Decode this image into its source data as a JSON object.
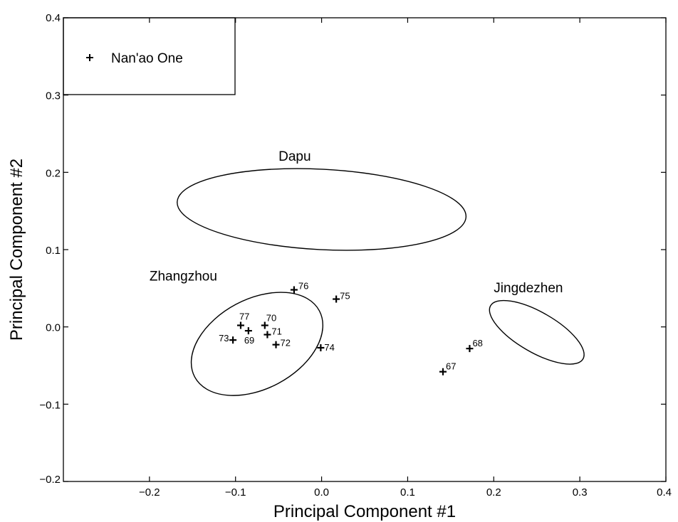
{
  "chart_data": {
    "type": "scatter",
    "xlabel": "Principal Component #1",
    "ylabel": "Principal Component #2",
    "xlim": [
      -0.3,
      0.4
    ],
    "ylim": [
      -0.2,
      0.4
    ],
    "x_ticks": [
      "-0.2",
      "-0.1",
      "0.0",
      "0.1",
      "0.2",
      "0.3",
      "0.4"
    ],
    "y_ticks": [
      "-0.2",
      "-0.1",
      "0.0",
      "0.1",
      "0.2",
      "0.3",
      "0.4"
    ],
    "grid": false,
    "legend": {
      "position": "top-left",
      "entries": [
        "Nan'ao One"
      ]
    },
    "series": [
      {
        "name": "Nan'ao One",
        "marker": "+",
        "points": [
          {
            "label": "67",
            "x": 0.141,
            "y": -0.058
          },
          {
            "label": "68",
            "x": 0.172,
            "y": -0.028
          },
          {
            "label": "69",
            "x": -0.085,
            "y": -0.005
          },
          {
            "label": "70",
            "x": -0.066,
            "y": 0.002
          },
          {
            "label": "71",
            "x": -0.063,
            "y": -0.01
          },
          {
            "label": "72",
            "x": -0.053,
            "y": -0.023
          },
          {
            "label": "73",
            "x": -0.103,
            "y": -0.017
          },
          {
            "label": "74",
            "x": -0.001,
            "y": -0.027
          },
          {
            "label": "75",
            "x": 0.017,
            "y": 0.036
          },
          {
            "label": "76",
            "x": -0.032,
            "y": 0.048
          },
          {
            "label": "77",
            "x": -0.094,
            "y": 0.002
          }
        ]
      }
    ],
    "groups": [
      {
        "name": "Dapu",
        "cx": 0.0,
        "cy": 0.152,
        "rx": 0.168,
        "ry": 0.052,
        "angle_deg": 3,
        "label_x": -0.05,
        "label_y": 0.215
      },
      {
        "name": "Zhangzhou",
        "cx": -0.075,
        "cy": -0.022,
        "rx": 0.082,
        "ry": 0.058,
        "angle_deg": -28,
        "label_x": -0.2,
        "label_y": 0.06
      },
      {
        "name": "Jingdezhen",
        "cx": 0.25,
        "cy": -0.007,
        "rx": 0.062,
        "ry": 0.026,
        "angle_deg": 30,
        "label_x": 0.2,
        "label_y": 0.045
      }
    ]
  }
}
